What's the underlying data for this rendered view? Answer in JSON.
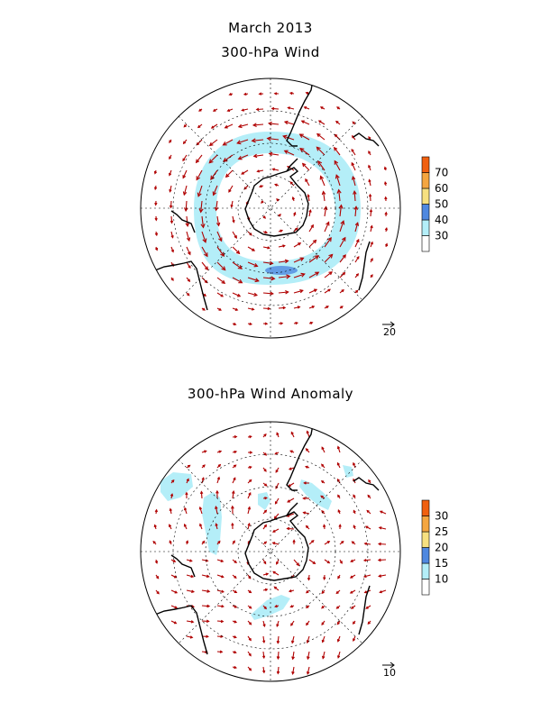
{
  "title": "March 2013",
  "panels": [
    {
      "title": "300-hPa Wind",
      "colorbar": {
        "levels": [
          "30",
          "40",
          "50",
          "60",
          "70"
        ],
        "colors": [
          "#ffffff",
          "#b4eef8",
          "#4f88e0",
          "#f6e080",
          "#f4a640",
          "#f06010"
        ]
      },
      "reference_vector": "20",
      "vector_color": "#b00000"
    },
    {
      "title": "300-hPa Wind Anomaly",
      "colorbar": {
        "levels": [
          "10",
          "15",
          "20",
          "25",
          "30"
        ],
        "colors": [
          "#ffffff",
          "#b4eef8",
          "#4f88e0",
          "#f6e080",
          "#f4a640",
          "#f06010"
        ]
      },
      "reference_vector": "10",
      "vector_color": "#b00000"
    }
  ]
}
